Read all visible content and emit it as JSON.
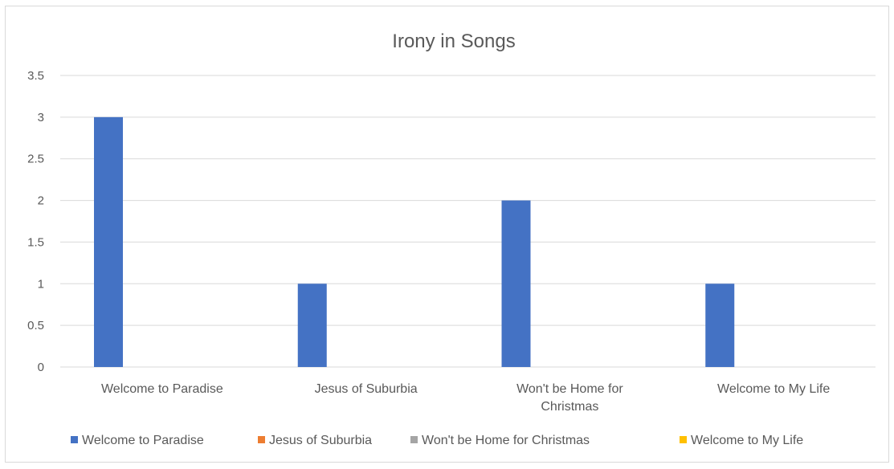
{
  "chart_data": {
    "type": "bar",
    "title": "Irony in Songs",
    "xlabel": "",
    "ylabel": "",
    "ylim": [
      0,
      3.5
    ],
    "ytick_step": 0.5,
    "y_tick_labels": [
      "0",
      "0.5",
      "1",
      "1.5",
      "2",
      "2.5",
      "3",
      "3.5"
    ],
    "grid": true,
    "legend_position": "bottom",
    "categories": [
      "Welcome to Paradise",
      "Jesus of Suburbia",
      "Won't be Home for Christmas",
      "Welcome to My Life"
    ],
    "series": [
      {
        "name": "Welcome to Paradise",
        "color": "#4472c4",
        "values": [
          3,
          1,
          2,
          1
        ]
      },
      {
        "name": "Jesus of Suburbia",
        "color": "#ed7d31",
        "values": [
          0,
          0,
          0,
          0
        ]
      },
      {
        "name": "Won't be Home for Christmas",
        "color": "#a5a5a5",
        "values": [
          0,
          0,
          0,
          0
        ]
      },
      {
        "name": "Welcome to My Life",
        "color": "#ffc000",
        "values": [
          0,
          0,
          0,
          0
        ]
      }
    ]
  }
}
